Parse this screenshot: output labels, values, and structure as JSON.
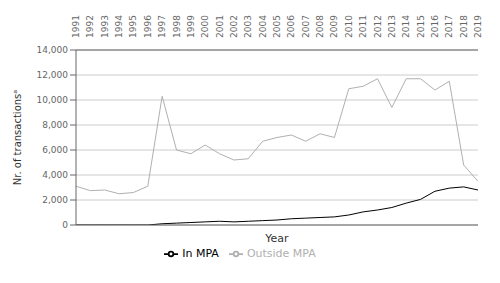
{
  "chart_data": {
    "type": "line",
    "x": [
      1991,
      1992,
      1993,
      1994,
      1995,
      1996,
      1997,
      1998,
      1999,
      2000,
      2001,
      2002,
      2003,
      2004,
      2005,
      2006,
      2007,
      2008,
      2009,
      2010,
      2011,
      2012,
      2013,
      2014,
      2015,
      2016,
      2017,
      2018,
      2019
    ],
    "series": [
      {
        "name": "In MPA",
        "color": "#000000",
        "values": [
          0,
          0,
          0,
          0,
          0,
          0,
          100,
          150,
          200,
          250,
          300,
          250,
          300,
          350,
          400,
          500,
          550,
          600,
          650,
          800,
          1050,
          1200,
          1400,
          1750,
          2050,
          2700,
          2950,
          3050,
          2800
        ]
      },
      {
        "name": "Outside MPA",
        "color": "#b0b0b0",
        "values": [
          3100,
          2750,
          2800,
          2500,
          2600,
          3100,
          10300,
          6000,
          5700,
          6400,
          5700,
          5200,
          5300,
          6700,
          7000,
          7200,
          6700,
          7300,
          7000,
          10900,
          11100,
          11700,
          9400,
          11700,
          11700,
          10800,
          11500,
          4800,
          3500
        ]
      }
    ],
    "xlabel": "Year",
    "ylabel": "Nr. of transactionsᵃ",
    "xlim": [
      1991,
      2019
    ],
    "xticks": [
      1991,
      1992,
      1993,
      1994,
      1995,
      1996,
      1997,
      1998,
      1999,
      2000,
      2001,
      2002,
      2003,
      2004,
      2005,
      2006,
      2007,
      2008,
      2009,
      2010,
      2011,
      2012,
      2013,
      2014,
      2015,
      2016,
      2017,
      2018,
      2019
    ],
    "ylim": [
      0,
      14000
    ],
    "yticks": [
      0,
      {
        "value": 2000,
        "label": "2,000"
      },
      {
        "value": 4000,
        "label": "4,000"
      },
      {
        "value": 6000,
        "label": "6,000"
      },
      {
        "value": 8000,
        "label": "8,000"
      },
      {
        "value": 10000,
        "label": "10,000"
      },
      {
        "value": 12000,
        "label": "12,000"
      },
      {
        "value": 14000,
        "label": "14,000"
      }
    ],
    "grid": true,
    "legend": "bottom"
  }
}
